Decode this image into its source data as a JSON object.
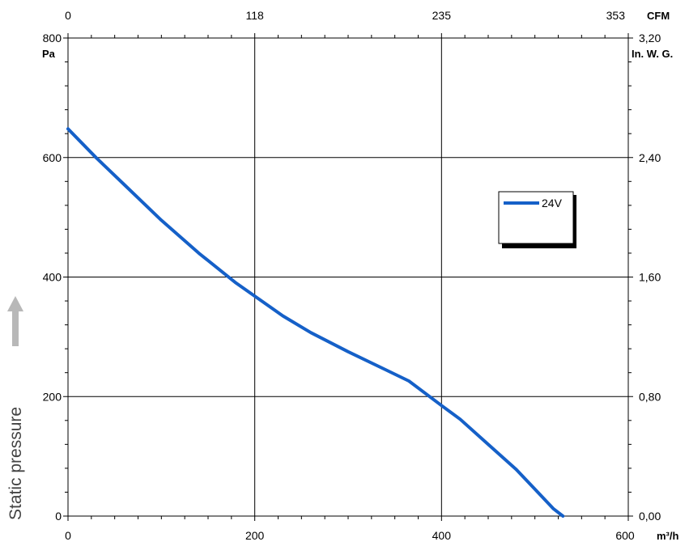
{
  "chart_data": {
    "type": "line",
    "title": "",
    "ylabel": "Static pressure",
    "x_axis_bottom": {
      "unit": "m³/h",
      "range": [
        0,
        600
      ],
      "ticks": [
        "0",
        "200",
        "400",
        "600"
      ],
      "tick_values": [
        0,
        200,
        400,
        600
      ]
    },
    "x_axis_top": {
      "unit": "CFM",
      "ticks": [
        "0",
        "118",
        "235",
        "353"
      ]
    },
    "y_axis_left": {
      "unit": "Pa",
      "range": [
        0,
        800
      ],
      "ticks": [
        "0",
        "200",
        "400",
        "600",
        "800"
      ],
      "tick_values": [
        0,
        200,
        400,
        600,
        800
      ]
    },
    "y_axis_right": {
      "unit": "In. W. G.",
      "ticks": [
        "0,00",
        "0,80",
        "1,60",
        "2,40",
        "3,20"
      ]
    },
    "grid": true,
    "legend": {
      "placement": "right",
      "entries": [
        "24V"
      ]
    },
    "series": [
      {
        "name": "24V",
        "color": "#1560c8",
        "x": [
          0,
          30,
          60,
          100,
          140,
          180,
          200,
          230,
          260,
          300,
          340,
          365,
          400,
          420,
          450,
          480,
          500,
          520,
          530
        ],
        "y": [
          648,
          600,
          555,
          495,
          440,
          390,
          368,
          335,
          307,
          275,
          245,
          226,
          185,
          162,
          120,
          78,
          45,
          12,
          0
        ]
      }
    ]
  }
}
